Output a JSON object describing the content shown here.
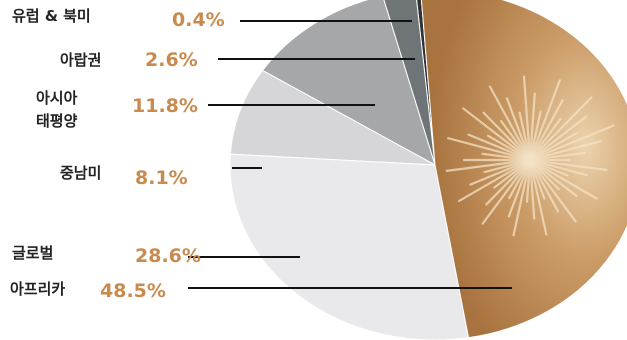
{
  "chart_data": {
    "type": "pie",
    "title": "",
    "categories": [
      "유럽 & 북미",
      "아랍권",
      "아시아 태평양",
      "중남미",
      "글로벌",
      "아프리카"
    ],
    "values": [
      0.4,
      2.6,
      11.8,
      8.1,
      28.6,
      48.5
    ],
    "value_labels": [
      "0.4%",
      "2.6%",
      "11.8%",
      "8.1%",
      "28.6%",
      "48.5%"
    ],
    "label_lines": [
      [
        "유럽 & 북미"
      ],
      [
        "아랍권"
      ],
      [
        "아시아",
        "태평양"
      ],
      [
        "중남미"
      ],
      [
        "글로벌"
      ],
      [
        "아프리카"
      ]
    ],
    "unit": "%",
    "colors": {
      "유럽 & 북미": "#2f3336",
      "아랍권": "#6f7577",
      "아시아 태평양": "#a5a7a9",
      "중남미": "#d6d6d8",
      "글로벌": "#e9e9eb",
      "아프리카": "#b88a55",
      "value_text": "#c98a4e",
      "label_text": "#222222"
    },
    "legend": "labels-left"
  }
}
